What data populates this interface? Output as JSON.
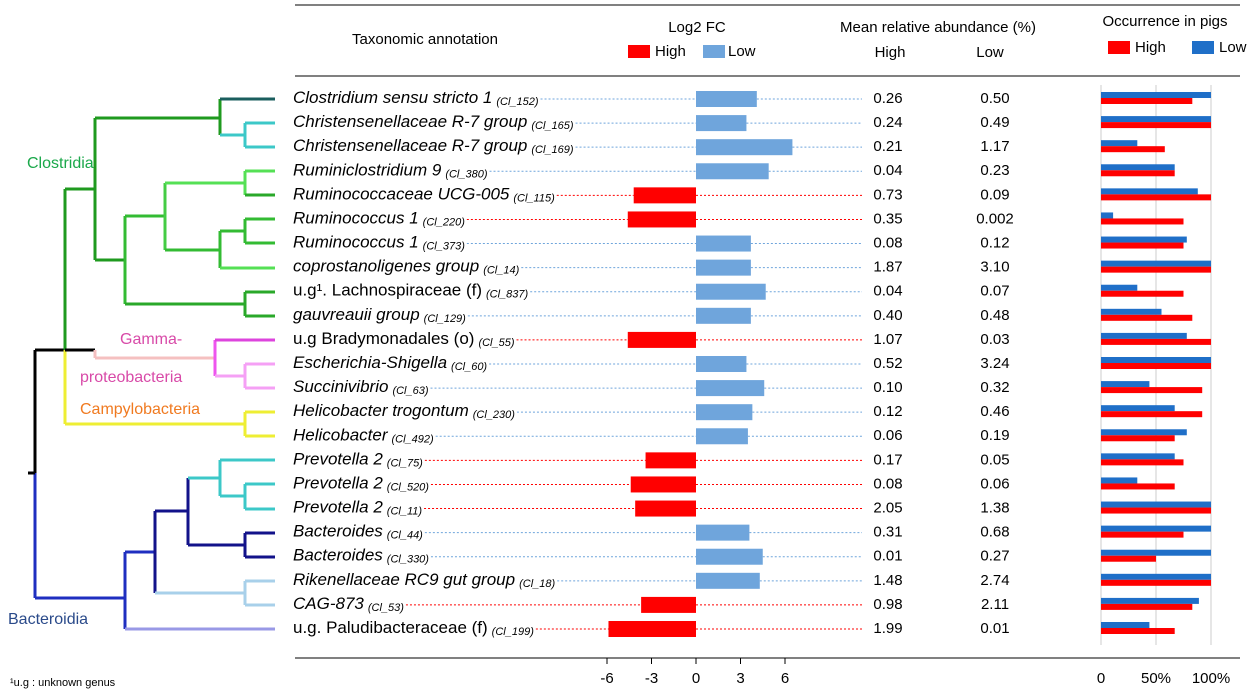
{
  "header": {
    "taxonomy": "Taxonomic annotation",
    "log2fc": "Log2 FC",
    "abundance": "Mean relative abundance (%)",
    "occurrence": "Occurrence in pigs",
    "high": "High",
    "low": "Low"
  },
  "clades": {
    "clostridia": "Clostridia",
    "gamma": [
      "Gamma-",
      "proteobacteria"
    ],
    "campylobacteria": "Campylobacteria",
    "bacteroidia": "Bacteroidia"
  },
  "footnote": "¹u.g : unknown genus",
  "colors": {
    "high": "#ff0000",
    "low_fc": "#6fa5dc",
    "low_occ": "#1f6fc8"
  },
  "log2fc_axis": {
    "xlim": [
      -6,
      6
    ],
    "xticks": [
      -6,
      -3,
      0,
      3,
      6
    ]
  },
  "occurrence_axis": {
    "xlim": [
      0,
      100
    ],
    "xticks": [
      0,
      {
        "value": 50,
        "label": "50%"
      },
      {
        "value": 100,
        "label": "100%"
      }
    ]
  },
  "rows": [
    {
      "name": "Clostridium sensu stricto 1",
      "cluster": "(Cl_152)",
      "italic": true,
      "log2fc": 4.1,
      "high": "0.26",
      "low": "0.50",
      "occ_high": 83,
      "occ_low": 100
    },
    {
      "name": "Christensenellaceae R-7 group",
      "cluster": "(Cl_165)",
      "italic": true,
      "log2fc": 3.4,
      "high": "0.24",
      "low": "0.49",
      "occ_high": 100,
      "occ_low": 100
    },
    {
      "name": "Christensenellaceae R-7 group",
      "cluster": "(Cl_169)",
      "italic": true,
      "log2fc": 6.5,
      "high": "0.21",
      "low": "1.17",
      "occ_high": 58,
      "occ_low": 33
    },
    {
      "name": "Ruminiclostridium 9",
      "cluster": "(Cl_380)",
      "italic": true,
      "log2fc": 4.9,
      "high": "0.04",
      "low": "0.23",
      "occ_high": 67,
      "occ_low": 67
    },
    {
      "name": "Ruminococcaceae UCG-005",
      "cluster": "(Cl_115)",
      "italic": true,
      "log2fc": -4.2,
      "high": "0.73",
      "low": "0.09",
      "occ_high": 100,
      "occ_low": 88
    },
    {
      "name": "Ruminococcus 1",
      "cluster": "(Cl_220)",
      "italic": true,
      "log2fc": -4.6,
      "high": "0.35",
      "low": "0.002",
      "occ_high": 75,
      "occ_low": 11
    },
    {
      "name": "Ruminococcus 1",
      "cluster": "(Cl_373)",
      "italic": true,
      "log2fc": 3.7,
      "high": "0.08",
      "low": "0.12",
      "occ_high": 75,
      "occ_low": 78
    },
    {
      "name": "coprostanoligenes group",
      "cluster": "(Cl_14)",
      "italic": true,
      "log2fc": 3.7,
      "high": "1.87",
      "low": "3.10",
      "occ_high": 100,
      "occ_low": 100
    },
    {
      "name": "u.g¹. Lachnospiraceae (f)",
      "cluster": "(Cl_837)",
      "italic": false,
      "log2fc": 4.7,
      "high": "0.04",
      "low": "0.07",
      "occ_high": 75,
      "occ_low": 33
    },
    {
      "name": "gauvreauii group",
      "cluster": "(Cl_129)",
      "italic": true,
      "log2fc": 3.7,
      "high": "0.40",
      "low": "0.48",
      "occ_high": 83,
      "occ_low": 55
    },
    {
      "name": "u.g Bradymonadales (o)",
      "cluster": "(Cl_55)",
      "italic": false,
      "log2fc": -4.6,
      "high": "1.07",
      "low": "0.03",
      "occ_high": 100,
      "occ_low": 78
    },
    {
      "name": "Escherichia-Shigella",
      "cluster": "(Cl_60)",
      "italic": true,
      "log2fc": 3.4,
      "high": "0.52",
      "low": "3.24",
      "occ_high": 100,
      "occ_low": 100
    },
    {
      "name": "Succinivibrio",
      "cluster": "(Cl_63)",
      "italic": true,
      "log2fc": 4.6,
      "high": "0.10",
      "low": "0.32",
      "occ_high": 92,
      "occ_low": 44
    },
    {
      "name": "Helicobacter trogontum",
      "cluster": "(Cl_230)",
      "italic": true,
      "log2fc": 3.8,
      "high": "0.12",
      "low": "0.46",
      "occ_high": 92,
      "occ_low": 67
    },
    {
      "name": "Helicobacter",
      "cluster": "(Cl_492)",
      "italic": true,
      "log2fc": 3.5,
      "high": "0.06",
      "low": "0.19",
      "occ_high": 67,
      "occ_low": 78
    },
    {
      "name": "Prevotella 2",
      "cluster": "(Cl_75)",
      "italic": true,
      "log2fc": -3.4,
      "high": "0.17",
      "low": "0.05",
      "occ_high": 75,
      "occ_low": 67
    },
    {
      "name": "Prevotella 2",
      "cluster": "(Cl_520)",
      "italic": true,
      "log2fc": -4.4,
      "high": "0.08",
      "low": "0.06",
      "occ_high": 67,
      "occ_low": 33
    },
    {
      "name": "Prevotella 2",
      "cluster": "(Cl_11)",
      "italic": true,
      "log2fc": -4.1,
      "high": "2.05",
      "low": "1.38",
      "occ_high": 100,
      "occ_low": 100
    },
    {
      "name": "Bacteroides",
      "cluster": "(Cl_44)",
      "italic": true,
      "log2fc": 3.6,
      "high": "0.31",
      "low": "0.68",
      "occ_high": 75,
      "occ_low": 100
    },
    {
      "name": "Bacteroides",
      "cluster": "(Cl_330)",
      "italic": true,
      "log2fc": 4.5,
      "high": "0.01",
      "low": "0.27",
      "occ_high": 50,
      "occ_low": 100
    },
    {
      "name": "Rikenellaceae RC9 gut group",
      "cluster": "(Cl_18)",
      "italic": true,
      "log2fc": 4.3,
      "high": "1.48",
      "low": "2.74",
      "occ_high": 100,
      "occ_low": 100
    },
    {
      "name": "CAG-873",
      "cluster": "(Cl_53)",
      "italic": true,
      "log2fc": -3.7,
      "high": "0.98",
      "low": "2.11",
      "occ_high": 83,
      "occ_low": 89
    },
    {
      "name": "u.g. Paludibacteraceae (f)",
      "cluster": "(Cl_199)",
      "italic": false,
      "log2fc": -5.9,
      "high": "1.99",
      "low": "0.01",
      "occ_high": 67,
      "occ_low": 44
    }
  ]
}
